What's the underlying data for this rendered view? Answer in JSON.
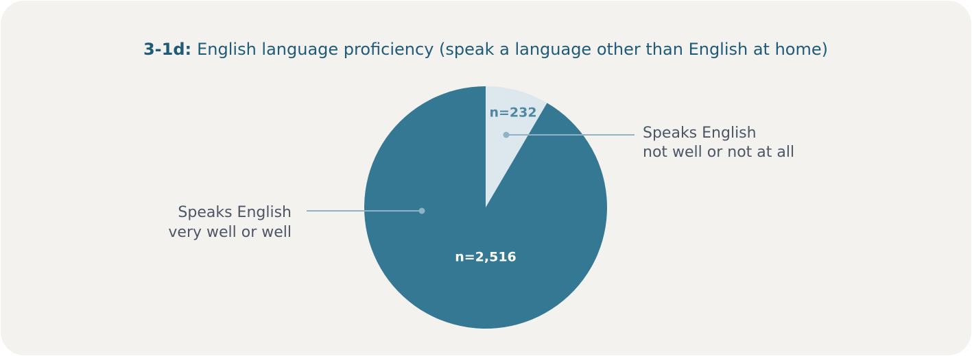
{
  "chart_data": {
    "type": "pie",
    "title_prefix": "3-1d:",
    "title": "English language proficiency (speak a language other than English at home)",
    "categories": [
      [
        "Speaks English",
        "not well or not at all"
      ],
      [
        "Speaks English",
        "very well or well"
      ]
    ],
    "values": [
      232,
      2516
    ],
    "value_labels": [
      "n=232",
      "n=2,516"
    ],
    "colors": [
      "#dce8ee",
      "#357894"
    ],
    "value_label_colors": [
      "#4f86a0",
      "#ffffff"
    ]
  }
}
